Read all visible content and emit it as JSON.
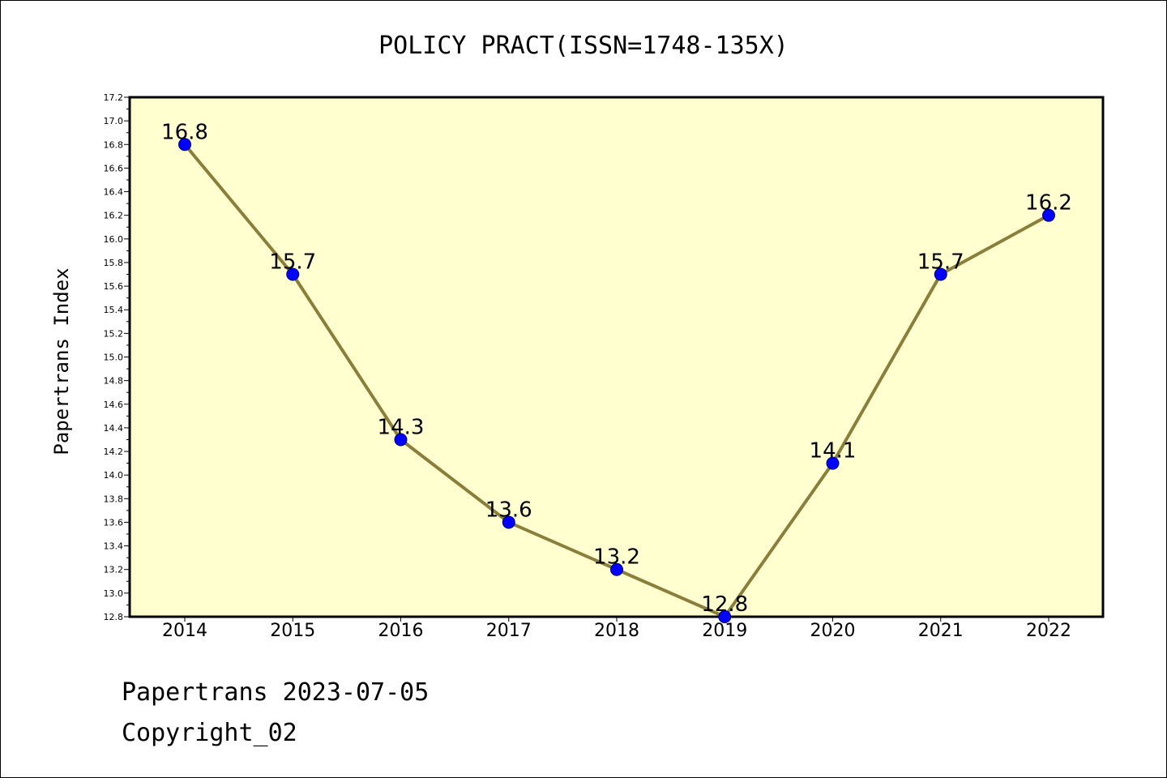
{
  "chart_data": {
    "type": "line",
    "title": "POLICY PRACT(ISSN=1748-135X)",
    "ylabel": "Papertrans Index",
    "xlabel": "",
    "categories": [
      "2014",
      "2015",
      "2016",
      "2017",
      "2018",
      "2019",
      "2020",
      "2021",
      "2022"
    ],
    "values": [
      16.8,
      15.7,
      14.3,
      13.6,
      13.2,
      12.8,
      14.1,
      15.7,
      16.2
    ],
    "data_labels": [
      "16.8",
      "15.7",
      "14.3",
      "13.6",
      "13.2",
      "12.8",
      "14.1",
      "15.7",
      "16.2"
    ],
    "ylim": [
      12.8,
      17.2
    ],
    "yticks": [
      "12.8",
      "13.0",
      "13.2",
      "13.4",
      "13.6",
      "13.8",
      "14.0",
      "14.2",
      "14.4",
      "14.6",
      "14.8",
      "15.0",
      "15.2",
      "15.4",
      "15.6",
      "15.8",
      "16.0",
      "16.2",
      "16.4",
      "16.6",
      "16.8",
      "17.0",
      "17.2"
    ],
    "grid": false,
    "colors": {
      "plot_background": "#ffffd0",
      "line": "#8b7d3a",
      "marker": "#0000ff",
      "marker_edge": "#000080"
    }
  },
  "footer": {
    "line1": "Papertrans 2023-07-05",
    "line2": "Copyright_02"
  }
}
